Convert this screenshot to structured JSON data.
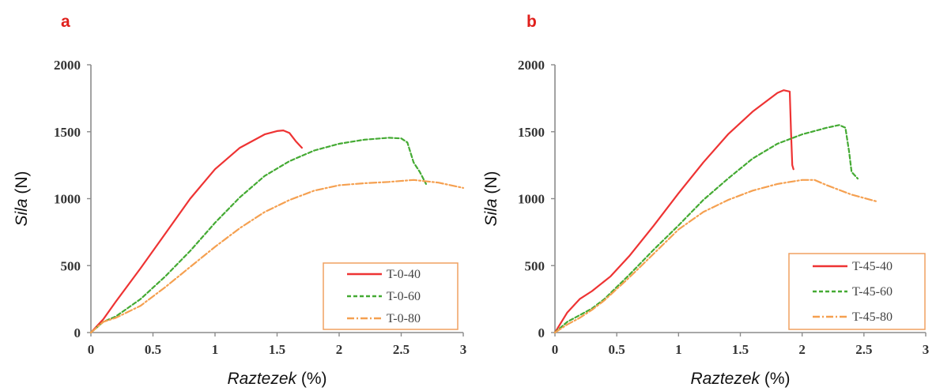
{
  "chart_data": [
    {
      "type": "line",
      "panel_label": "a",
      "xlabel_italic": "Raztezek",
      "xlabel_rest": " (%)",
      "ylabel_italic": "Sila",
      "ylabel_rest": " (N)",
      "xlim": [
        0,
        3
      ],
      "ylim": [
        0,
        2000
      ],
      "xticks": [
        0,
        0.5,
        1,
        1.5,
        2,
        2.5,
        3
      ],
      "xtick_labels": [
        "0",
        "0.5",
        "1",
        "1.5",
        "2",
        "2.5",
        "3"
      ],
      "yticks": [
        0,
        500,
        1000,
        1500,
        2000
      ],
      "ytick_labels": [
        "0",
        "500",
        "1000",
        "1500",
        "2000"
      ],
      "grid": false,
      "legend_position": "bottom-right",
      "series": [
        {
          "name": "T-0-40",
          "color": "#ee3333",
          "style": "solid",
          "x": [
            0,
            0.1,
            0.2,
            0.4,
            0.6,
            0.8,
            1.0,
            1.2,
            1.4,
            1.5,
            1.55,
            1.6,
            1.65,
            1.7
          ],
          "y": [
            0,
            100,
            230,
            480,
            740,
            1000,
            1220,
            1380,
            1480,
            1505,
            1510,
            1490,
            1430,
            1380
          ]
        },
        {
          "name": "T-0-60",
          "color": "#44aa33",
          "style": "dashed",
          "x": [
            0,
            0.1,
            0.2,
            0.4,
            0.6,
            0.8,
            1.0,
            1.2,
            1.4,
            1.6,
            1.8,
            2.0,
            2.2,
            2.4,
            2.5,
            2.55,
            2.6,
            2.65,
            2.7
          ],
          "y": [
            0,
            80,
            120,
            250,
            420,
            610,
            820,
            1010,
            1170,
            1280,
            1360,
            1410,
            1440,
            1455,
            1450,
            1420,
            1270,
            1200,
            1110
          ]
        },
        {
          "name": "T-0-80",
          "color": "#f5a050",
          "style": "dashdot",
          "x": [
            0,
            0.1,
            0.2,
            0.4,
            0.6,
            0.8,
            1.0,
            1.2,
            1.4,
            1.6,
            1.8,
            2.0,
            2.2,
            2.4,
            2.6,
            2.8,
            3.0
          ],
          "y": [
            0,
            80,
            110,
            200,
            340,
            490,
            640,
            780,
            900,
            990,
            1060,
            1100,
            1115,
            1125,
            1140,
            1120,
            1080
          ]
        }
      ]
    },
    {
      "type": "line",
      "panel_label": "b",
      "xlabel_italic": "Raztezek",
      "xlabel_rest": " (%)",
      "ylabel_italic": "Sila",
      "ylabel_rest": " (N)",
      "xlim": [
        0,
        3
      ],
      "ylim": [
        0,
        2000
      ],
      "xticks": [
        0,
        0.5,
        1,
        1.5,
        2,
        2.5,
        3
      ],
      "xtick_labels": [
        "0",
        "0.5",
        "1",
        "1.5",
        "2",
        "2.5",
        "3"
      ],
      "yticks": [
        0,
        500,
        1000,
        1500,
        2000
      ],
      "ytick_labels": [
        "0",
        "500",
        "1000",
        "1500",
        "2000"
      ],
      "grid": false,
      "legend_position": "bottom-right",
      "series": [
        {
          "name": "T-45-40",
          "color": "#ee3333",
          "style": "solid",
          "x": [
            0,
            0.1,
            0.2,
            0.3,
            0.45,
            0.6,
            0.8,
            1.0,
            1.2,
            1.4,
            1.6,
            1.8,
            1.85,
            1.9,
            1.91,
            1.92,
            1.93
          ],
          "y": [
            0,
            150,
            250,
            310,
            420,
            570,
            800,
            1040,
            1270,
            1480,
            1650,
            1790,
            1810,
            1800,
            1500,
            1250,
            1220
          ]
        },
        {
          "name": "T-45-60",
          "color": "#44aa33",
          "style": "dashed",
          "x": [
            0,
            0.1,
            0.2,
            0.3,
            0.4,
            0.6,
            0.8,
            1.0,
            1.2,
            1.4,
            1.6,
            1.8,
            2.0,
            2.2,
            2.3,
            2.35,
            2.38,
            2.4,
            2.45
          ],
          "y": [
            0,
            80,
            130,
            180,
            250,
            430,
            620,
            800,
            990,
            1150,
            1300,
            1410,
            1480,
            1530,
            1550,
            1530,
            1350,
            1200,
            1150
          ]
        },
        {
          "name": "T-45-80",
          "color": "#f5a050",
          "style": "dashdot",
          "x": [
            0,
            0.1,
            0.2,
            0.3,
            0.4,
            0.6,
            0.8,
            1.0,
            1.2,
            1.4,
            1.6,
            1.8,
            2.0,
            2.1,
            2.2,
            2.4,
            2.6
          ],
          "y": [
            0,
            60,
            110,
            170,
            240,
            410,
            590,
            770,
            900,
            990,
            1060,
            1110,
            1140,
            1140,
            1100,
            1030,
            980
          ]
        }
      ]
    }
  ]
}
